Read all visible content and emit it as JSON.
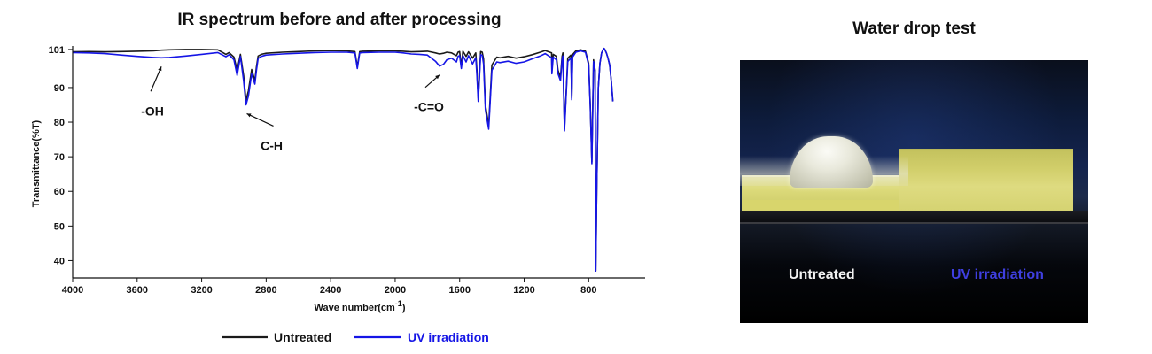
{
  "chart_data": {
    "type": "line",
    "title": "IR spectrum before and after processing",
    "xlabel": "Wave number(cm",
    "xlabel_superscript": "-1",
    "xlabel_suffix": ")",
    "ylabel": "Transmittance(%T)",
    "xlim": [
      4000,
      450
    ],
    "ylim": [
      35,
      102
    ],
    "x_reversed": true,
    "x_ticks": [
      4000,
      3600,
      3200,
      2800,
      2400,
      2000,
      1600,
      1200,
      800
    ],
    "y_ticks": [
      40,
      50,
      60,
      70,
      80,
      90,
      101
    ],
    "grid": false,
    "legend_position": "bottom",
    "annotations": [
      {
        "text": "-OH",
        "x": 3450,
        "y": 98.6
      },
      {
        "text": "C-H",
        "x": 2920,
        "y": 85
      },
      {
        "text": "-C=O",
        "x": 1725,
        "y": 96.2
      }
    ],
    "series": [
      {
        "name": "Untreated",
        "color": "#1a1a1a",
        "x": [
          4000,
          3900,
          3800,
          3700,
          3600,
          3500,
          3450,
          3400,
          3300,
          3200,
          3100,
          3050,
          3030,
          3000,
          2980,
          2960,
          2940,
          2925,
          2910,
          2890,
          2870,
          2860,
          2850,
          2830,
          2800,
          2700,
          2600,
          2500,
          2400,
          2300,
          2250,
          2235,
          2220,
          2200,
          2100,
          2000,
          1950,
          1900,
          1850,
          1800,
          1750,
          1725,
          1700,
          1680,
          1650,
          1620,
          1610,
          1600,
          1590,
          1580,
          1560,
          1545,
          1520,
          1500,
          1493,
          1485,
          1470,
          1460,
          1452,
          1440,
          1420,
          1400,
          1370,
          1350,
          1300,
          1250,
          1200,
          1150,
          1100,
          1070,
          1030,
          1028,
          1020,
          1000,
          990,
          975,
          965,
          960,
          950,
          930,
          910,
          905,
          900,
          880,
          850,
          820,
          800,
          790,
          780,
          770,
          760,
          756,
          750,
          740,
          730,
          720,
          710,
          705,
          700,
          690,
          680,
          670,
          660,
          650
        ],
        "y": [
          100.3,
          100.4,
          100.3,
          100.4,
          100.5,
          100.6,
          100.8,
          100.9,
          101.0,
          101.0,
          100.9,
          99.6,
          100.1,
          98.8,
          95.0,
          99.6,
          93.5,
          86.3,
          89.0,
          95.2,
          92.0,
          96.0,
          99.1,
          99.6,
          99.9,
          100.2,
          100.4,
          100.6,
          100.7,
          100.6,
          100.4,
          96.0,
          100.4,
          100.5,
          100.6,
          100.6,
          100.5,
          100.3,
          100.4,
          100.5,
          100.0,
          99.7,
          99.9,
          100.2,
          100.0,
          99.2,
          100.2,
          100.4,
          96.0,
          100.5,
          99.0,
          100.3,
          98.5,
          100.0,
          95.0,
          87.0,
          100.4,
          100.2,
          98.3,
          85.0,
          79.0,
          96.5,
          98.8,
          98.6,
          99.0,
          98.5,
          98.9,
          99.5,
          100.2,
          100.7,
          100.0,
          95.0,
          99.6,
          99.0,
          95.0,
          93.0,
          99.0,
          100.0,
          78.0,
          98.5,
          99.4,
          87.0,
          99.5,
          100.6,
          100.9,
          100.5,
          97.0,
          85.0,
          68.5,
          98.0,
          95.0,
          37.0,
          60.0,
          90.0,
          97.0,
          100.0,
          101.0,
          101.3,
          101.0,
          100.0,
          98.5,
          96.5,
          92.0,
          86.0
        ]
      },
      {
        "name": "UV irradiation",
        "color": "#1515e6",
        "x": [
          4000,
          3900,
          3800,
          3700,
          3600,
          3500,
          3450,
          3400,
          3300,
          3200,
          3100,
          3050,
          3030,
          3000,
          2980,
          2960,
          2940,
          2925,
          2910,
          2890,
          2870,
          2860,
          2850,
          2830,
          2800,
          2700,
          2600,
          2500,
          2400,
          2300,
          2250,
          2235,
          2220,
          2200,
          2100,
          2000,
          1950,
          1900,
          1850,
          1800,
          1750,
          1725,
          1700,
          1680,
          1650,
          1620,
          1610,
          1600,
          1590,
          1580,
          1560,
          1545,
          1520,
          1500,
          1493,
          1485,
          1470,
          1460,
          1452,
          1440,
          1420,
          1400,
          1370,
          1350,
          1300,
          1250,
          1200,
          1150,
          1100,
          1070,
          1030,
          1028,
          1020,
          1000,
          990,
          975,
          965,
          960,
          950,
          930,
          910,
          905,
          900,
          880,
          850,
          820,
          800,
          790,
          780,
          770,
          760,
          756,
          750,
          740,
          730,
          720,
          710,
          705,
          700,
          690,
          680,
          670,
          660,
          650
        ],
        "y": [
          100.1,
          100.0,
          99.8,
          99.4,
          99.0,
          98.7,
          98.6,
          98.7,
          99.1,
          99.6,
          100.1,
          98.9,
          99.5,
          98.0,
          93.5,
          99.0,
          92.0,
          85.0,
          87.5,
          94.0,
          91.0,
          95.0,
          98.4,
          99.0,
          99.4,
          99.7,
          99.9,
          100.1,
          100.2,
          100.2,
          100.0,
          95.5,
          100.0,
          100.1,
          100.2,
          100.2,
          100.0,
          99.7,
          99.6,
          99.4,
          97.6,
          96.2,
          96.7,
          98.0,
          98.5,
          97.4,
          99.0,
          99.2,
          95.5,
          99.2,
          97.4,
          99.2,
          96.8,
          98.6,
          93.5,
          86.0,
          99.5,
          99.3,
          96.8,
          83.6,
          78.0,
          95.0,
          97.4,
          97.2,
          97.6,
          97.0,
          97.4,
          98.3,
          99.1,
          99.8,
          98.6,
          94.0,
          98.8,
          98.0,
          94.0,
          92.0,
          98.0,
          99.1,
          77.5,
          97.5,
          98.6,
          86.5,
          98.8,
          100.2,
          100.6,
          100.2,
          96.5,
          84.5,
          68.0,
          97.5,
          94.5,
          37.0,
          60.0,
          90.0,
          97.0,
          100.0,
          101.0,
          101.3,
          101.0,
          100.0,
          98.5,
          96.5,
          92.0,
          86.0
        ]
      }
    ]
  },
  "photo": {
    "title": "Water drop test",
    "caption_untreated": "Untreated",
    "caption_uv": "UV irradiation"
  }
}
